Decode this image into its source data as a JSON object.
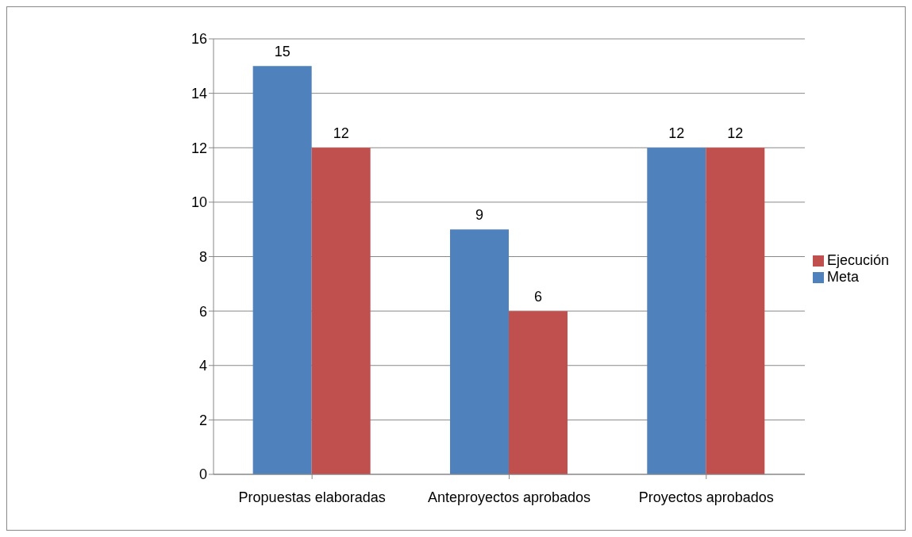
{
  "chart_data": {
    "type": "bar",
    "categories": [
      "Propuestas elaboradas",
      "Anteproyectos aprobados",
      "Proyectos aprobados"
    ],
    "series": [
      {
        "name": "Meta",
        "color": "#4f81bd",
        "values": [
          15,
          9,
          12
        ]
      },
      {
        "name": "Ejecución",
        "color": "#c0504d",
        "values": [
          12,
          6,
          12
        ]
      }
    ],
    "ylim": [
      0,
      16
    ],
    "yticks": [
      0,
      2,
      4,
      6,
      8,
      10,
      12,
      14,
      16
    ],
    "grid": "y",
    "legend": "right",
    "data_labels": true
  }
}
